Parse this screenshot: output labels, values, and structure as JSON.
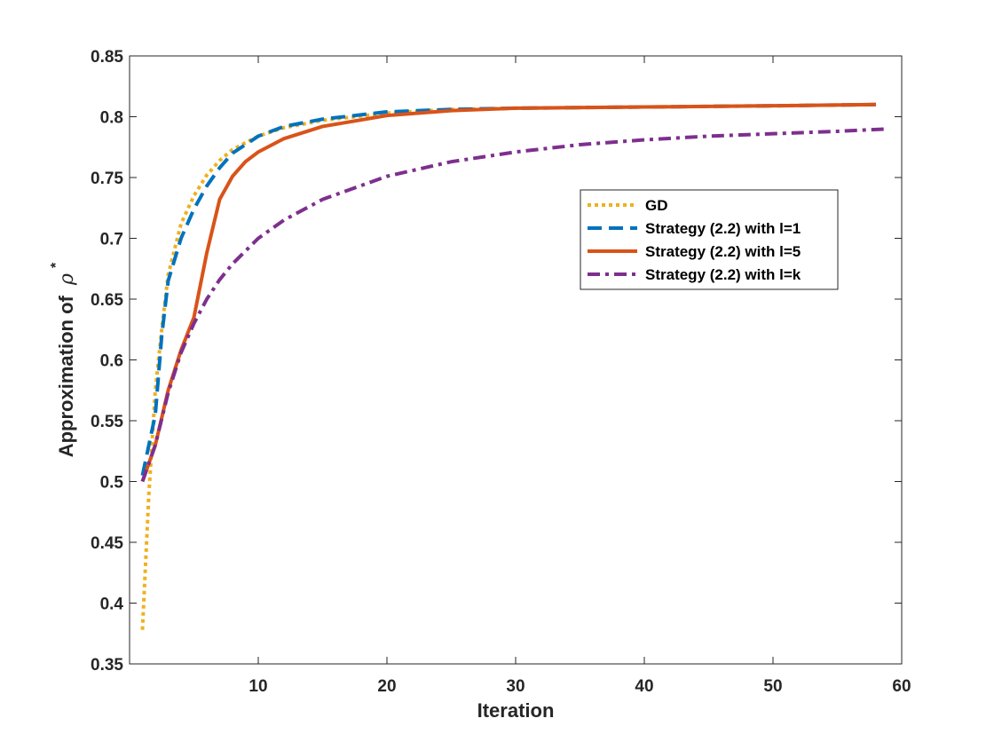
{
  "chart_data": {
    "type": "line",
    "title": "",
    "xlabel": "Iteration",
    "ylabel": "Approximation of ρ*",
    "ylabel_main": "Approximation of",
    "ylabel_symbol": "ρ",
    "ylabel_superscript": "*",
    "xlim": [
      0,
      60
    ],
    "ylim": [
      0.35,
      0.85
    ],
    "xticks": [
      10,
      20,
      30,
      40,
      50,
      60
    ],
    "yticks": [
      0.35,
      0.4,
      0.45,
      0.5,
      0.55,
      0.6,
      0.65,
      0.7,
      0.75,
      0.8,
      0.85
    ],
    "xtick_labels": [
      "10",
      "20",
      "30",
      "40",
      "50",
      "60"
    ],
    "ytick_labels": [
      "0.35",
      "0.4",
      "0.45",
      "0.5",
      "0.55",
      "0.6",
      "0.65",
      "0.7",
      "0.75",
      "0.8",
      "0.85"
    ],
    "grid": false,
    "legend_position": "center-right",
    "series": [
      {
        "name": "GD",
        "color": "#EDB120",
        "style": "dotted",
        "x": [
          1,
          1.5,
          2,
          2.5,
          3,
          4,
          5,
          6,
          7,
          8,
          10,
          12,
          15,
          20,
          25,
          30,
          40,
          50,
          58
        ],
        "y": [
          0.378,
          0.49,
          0.575,
          0.625,
          0.67,
          0.712,
          0.735,
          0.752,
          0.764,
          0.773,
          0.784,
          0.791,
          0.797,
          0.803,
          0.806,
          0.807,
          0.808,
          0.809,
          0.81
        ]
      },
      {
        "name": "Strategy (2.2) with l=1",
        "color": "#0072BD",
        "style": "dashed",
        "x": [
          1,
          2,
          2.5,
          3,
          4,
          5,
          6,
          7,
          8,
          10,
          12,
          15,
          20,
          25,
          30,
          40,
          50,
          58
        ],
        "y": [
          0.505,
          0.555,
          0.62,
          0.665,
          0.7,
          0.724,
          0.743,
          0.758,
          0.77,
          0.784,
          0.792,
          0.798,
          0.804,
          0.806,
          0.807,
          0.808,
          0.809,
          0.81
        ]
      },
      {
        "name": "Strategy (2.2) with l=5",
        "color": "#D95319",
        "style": "solid",
        "x": [
          1,
          2,
          3,
          4,
          5,
          6,
          7,
          8,
          9,
          10,
          12,
          15,
          20,
          25,
          30,
          40,
          50,
          58
        ],
        "y": [
          0.5,
          0.53,
          0.575,
          0.608,
          0.635,
          0.688,
          0.732,
          0.751,
          0.763,
          0.771,
          0.782,
          0.792,
          0.801,
          0.805,
          0.807,
          0.808,
          0.809,
          0.81
        ]
      },
      {
        "name": "Strategy (2.2) with l=k",
        "color": "#7E2F8E",
        "style": "dashdot",
        "x": [
          1,
          2,
          3,
          4,
          5,
          6,
          7,
          8,
          10,
          12,
          15,
          20,
          25,
          30,
          35,
          40,
          45,
          50,
          55,
          59
        ],
        "y": [
          0.5,
          0.53,
          0.573,
          0.606,
          0.63,
          0.65,
          0.666,
          0.679,
          0.7,
          0.715,
          0.732,
          0.751,
          0.763,
          0.771,
          0.777,
          0.781,
          0.784,
          0.786,
          0.788,
          0.79
        ]
      }
    ]
  }
}
